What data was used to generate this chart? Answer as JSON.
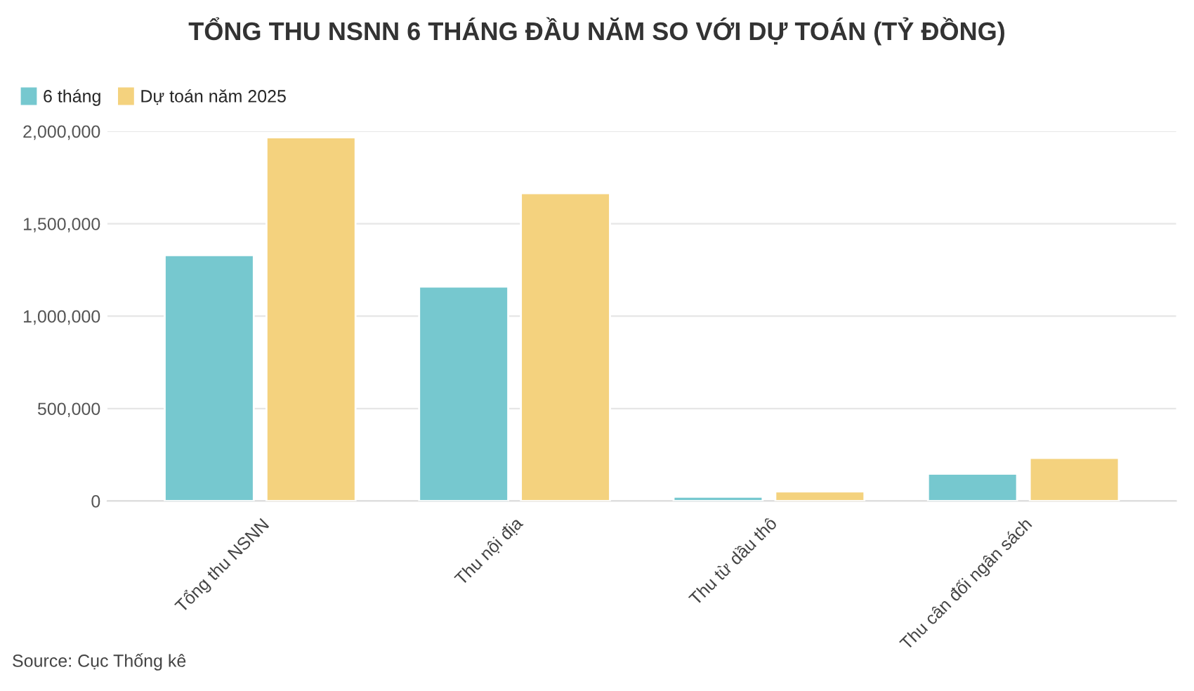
{
  "chart_data": {
    "type": "bar",
    "title": "TỔNG THU NSNN 6 THÁNG ĐẦU NĂM SO VỚI DỰ TOÁN (TỶ ĐỒNG)",
    "categories": [
      "Tổng thu NSNN",
      "Thu nội địa",
      "Thu từ dầu thô",
      "Thu cân đối ngân sách"
    ],
    "series": [
      {
        "name": "6 tháng",
        "color": "#76c8cf",
        "values": [
          1330000,
          1160000,
          23000,
          147000
        ]
      },
      {
        "name": "Dự toán năm 2025",
        "color": "#f4d27e",
        "values": [
          1967000,
          1665000,
          51000,
          233000
        ]
      }
    ],
    "ylim": [
      0,
      2000000
    ],
    "yticks": [
      {
        "value": 0,
        "label": "0"
      },
      {
        "value": 500000,
        "label": "500,000"
      },
      {
        "value": 1000000,
        "label": "1,000,000"
      },
      {
        "value": 1500000,
        "label": "1,500,000"
      },
      {
        "value": 2000000,
        "label": "2,000,000"
      }
    ],
    "grid": "y",
    "legend": "top left",
    "annotations": [
      "Source: Cục Thống kê"
    ]
  }
}
